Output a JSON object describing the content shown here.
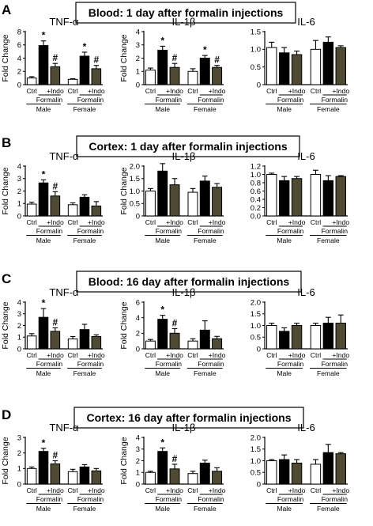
{
  "bar_colors": {
    "Ctrl": "#ffffff",
    "Formalin": "#000000",
    "+Indo": "#4f4a33"
  },
  "x_labels": {
    "ctrl": "Ctrl",
    "indo": "+Indo",
    "formalin": "Formalin",
    "male": "Male",
    "female": "Female"
  },
  "panels": [
    {
      "letter": "A",
      "banner": "Blood: 1 day after formalin injections"
    },
    {
      "letter": "B",
      "banner": "Cortex: 1 day after formalin injections"
    },
    {
      "letter": "C",
      "banner": "Blood: 16 day after formalin injections"
    },
    {
      "letter": "D",
      "banner": "Cortex: 16 day after formalin injections"
    }
  ],
  "chart_data": [
    {
      "type": "bar",
      "panel": "A",
      "title": "TNF-α",
      "ylabel": "Fold Change",
      "ylim": [
        0,
        8
      ],
      "yticks": [
        0,
        2,
        4,
        6,
        8
      ],
      "categories": [
        "Male Ctrl",
        "Male Formalin",
        "Male +Indo",
        "Female Ctrl",
        "Female Formalin",
        "Female +Indo"
      ],
      "values": [
        1.0,
        5.9,
        2.7,
        0.8,
        4.3,
        2.4
      ],
      "errors": [
        0.2,
        0.7,
        0.5,
        0.1,
        0.6,
        0.5
      ],
      "marks": [
        "",
        "*",
        "#",
        "",
        "*",
        "#"
      ]
    },
    {
      "type": "bar",
      "panel": "A",
      "title": "IL-1β",
      "ylabel": "Fold Change",
      "ylim": [
        0,
        4
      ],
      "yticks": [
        0,
        1,
        2,
        3,
        4
      ],
      "categories": [
        "Male Ctrl",
        "Male Formalin",
        "Male +Indo",
        "Female Ctrl",
        "Female Formalin",
        "Female +Indo"
      ],
      "values": [
        1.1,
        2.6,
        1.3,
        1.0,
        2.0,
        1.3
      ],
      "errors": [
        0.15,
        0.3,
        0.3,
        0.2,
        0.2,
        0.15
      ],
      "marks": [
        "",
        "*",
        "#",
        "",
        "*",
        "#"
      ]
    },
    {
      "type": "bar",
      "panel": "A",
      "title": "IL-6",
      "ylabel": "",
      "ylim": [
        0,
        1.5
      ],
      "yticks": [
        0,
        0.5,
        1.0,
        1.5
      ],
      "categories": [
        "Male Ctrl",
        "Male Formalin",
        "Male +Indo",
        "Female Ctrl",
        "Female Formalin",
        "Female +Indo"
      ],
      "values": [
        1.05,
        0.9,
        0.85,
        1.0,
        1.2,
        1.05
      ],
      "errors": [
        0.15,
        0.15,
        0.1,
        0.25,
        0.15,
        0.05
      ],
      "marks": [
        "",
        "",
        "",
        "",
        "",
        ""
      ]
    },
    {
      "type": "bar",
      "panel": "B",
      "title": "TNF-α",
      "ylabel": "Fold Change",
      "ylim": [
        0,
        4
      ],
      "yticks": [
        0,
        1,
        2,
        3,
        4
      ],
      "categories": [
        "Male Ctrl",
        "Male Formalin",
        "Male +Indo",
        "Female Ctrl",
        "Female Formalin",
        "Female +Indo"
      ],
      "values": [
        0.95,
        2.65,
        1.6,
        0.9,
        1.5,
        0.8
      ],
      "errors": [
        0.15,
        0.25,
        0.35,
        0.15,
        0.2,
        0.35
      ],
      "marks": [
        "",
        "*",
        "#",
        "",
        "",
        ""
      ]
    },
    {
      "type": "bar",
      "panel": "B",
      "title": "IL-1β",
      "ylabel": "Fold Change",
      "ylim": [
        0,
        2.0
      ],
      "yticks": [
        0,
        0.5,
        1.0,
        1.5,
        2.0
      ],
      "categories": [
        "Male Ctrl",
        "Male Formalin",
        "Male +Indo",
        "Female Ctrl",
        "Female Formalin",
        "Female +Indo"
      ],
      "values": [
        1.0,
        1.8,
        1.25,
        0.95,
        1.4,
        1.15
      ],
      "errors": [
        0.1,
        0.3,
        0.25,
        0.15,
        0.2,
        0.15
      ],
      "marks": [
        "",
        "",
        "",
        "",
        "",
        ""
      ]
    },
    {
      "type": "bar",
      "panel": "B",
      "title": "IL-6",
      "ylabel": "",
      "ylim": [
        0,
        1.2
      ],
      "yticks": [
        0,
        0.2,
        0.4,
        0.6,
        0.8,
        1.0,
        1.2
      ],
      "categories": [
        "Male Ctrl",
        "Male Formalin",
        "Male +Indo",
        "Female Ctrl",
        "Female Formalin",
        "Female +Indo"
      ],
      "values": [
        1.0,
        0.85,
        0.9,
        1.0,
        0.85,
        0.95
      ],
      "errors": [
        0.03,
        0.1,
        0.05,
        0.1,
        0.12,
        0.02
      ],
      "marks": [
        "",
        "",
        "",
        "",
        "",
        ""
      ]
    },
    {
      "type": "bar",
      "panel": "C",
      "title": "TNF-α",
      "ylabel": "Fold Change",
      "ylim": [
        0,
        4
      ],
      "yticks": [
        0,
        1,
        2,
        3,
        4
      ],
      "categories": [
        "Male Ctrl",
        "Male Formalin",
        "Male +Indo",
        "Female Ctrl",
        "Female Formalin",
        "Female +Indo"
      ],
      "values": [
        1.1,
        2.7,
        1.5,
        0.85,
        1.65,
        1.05
      ],
      "errors": [
        0.2,
        0.75,
        0.3,
        0.2,
        0.45,
        0.15
      ],
      "marks": [
        "",
        "*",
        "#",
        "",
        "",
        ""
      ]
    },
    {
      "type": "bar",
      "panel": "C",
      "title": "IL-1β",
      "ylabel": "Fold Change",
      "ylim": [
        0,
        6
      ],
      "yticks": [
        0,
        2,
        4,
        6
      ],
      "categories": [
        "Male Ctrl",
        "Male Formalin",
        "Male +Indo",
        "Female Ctrl",
        "Female Formalin",
        "Female +Indo"
      ],
      "values": [
        1.0,
        3.8,
        2.0,
        1.0,
        2.4,
        1.3
      ],
      "errors": [
        0.2,
        0.5,
        0.6,
        0.3,
        1.2,
        0.3
      ],
      "marks": [
        "",
        "*",
        "#",
        "",
        "",
        ""
      ]
    },
    {
      "type": "bar",
      "panel": "C",
      "title": "IL-6",
      "ylabel": "",
      "ylim": [
        0,
        2.0
      ],
      "yticks": [
        0,
        0.5,
        1.0,
        1.5,
        2.0
      ],
      "categories": [
        "Male Ctrl",
        "Male Formalin",
        "Male +Indo",
        "Female Ctrl",
        "Female Formalin",
        "Female +Indo"
      ],
      "values": [
        1.0,
        0.75,
        1.0,
        1.0,
        1.1,
        1.1
      ],
      "errors": [
        0.1,
        0.15,
        0.1,
        0.1,
        0.25,
        0.35
      ],
      "marks": [
        "",
        "",
        "",
        "",
        "",
        ""
      ]
    },
    {
      "type": "bar",
      "panel": "D",
      "title": "TNF-α",
      "ylabel": "Fold Change",
      "ylim": [
        0,
        3
      ],
      "yticks": [
        0,
        1,
        2,
        3
      ],
      "categories": [
        "Male Ctrl",
        "Male Formalin",
        "Male +Indo",
        "Female Ctrl",
        "Female Formalin",
        "Female +Indo"
      ],
      "values": [
        1.0,
        2.1,
        1.3,
        0.8,
        1.1,
        0.85
      ],
      "errors": [
        0.1,
        0.2,
        0.2,
        0.15,
        0.15,
        0.15
      ],
      "marks": [
        "",
        "*",
        "#",
        "",
        "",
        ""
      ]
    },
    {
      "type": "bar",
      "panel": "D",
      "title": "IL-1β",
      "ylabel": "Fold Change",
      "ylim": [
        0,
        4
      ],
      "yticks": [
        0,
        1,
        2,
        3,
        4
      ],
      "categories": [
        "Male Ctrl",
        "Male Formalin",
        "Male +Indo",
        "Female Ctrl",
        "Female Formalin",
        "Female +Indo"
      ],
      "values": [
        1.0,
        2.8,
        1.3,
        0.9,
        1.8,
        1.1
      ],
      "errors": [
        0.1,
        0.3,
        0.4,
        0.2,
        0.25,
        0.3
      ],
      "marks": [
        "",
        "*",
        "#",
        "",
        "",
        ""
      ]
    },
    {
      "type": "bar",
      "panel": "D",
      "title": "IL-6",
      "ylabel": "",
      "ylim": [
        0,
        2.0
      ],
      "yticks": [
        0,
        0.5,
        1.0,
        1.5,
        2.0
      ],
      "categories": [
        "Male Ctrl",
        "Male Formalin",
        "Male +Indo",
        "Female Ctrl",
        "Female Formalin",
        "Female +Indo"
      ],
      "values": [
        1.0,
        1.05,
        0.9,
        0.85,
        1.35,
        1.3
      ],
      "errors": [
        0.05,
        0.2,
        0.15,
        0.2,
        0.35,
        0.05
      ],
      "marks": [
        "",
        "",
        "",
        "",
        "",
        ""
      ]
    }
  ]
}
